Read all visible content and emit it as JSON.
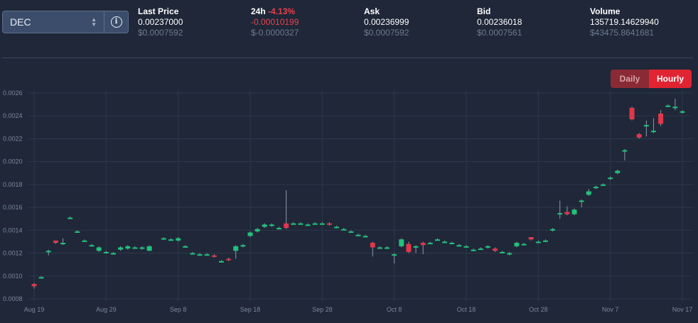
{
  "pair_selector": {
    "value": "DEC"
  },
  "stats": {
    "last_price": {
      "label": "Last Price",
      "value": "0.00237000",
      "usd": "$0.0007592"
    },
    "change_24h": {
      "label": "24h",
      "percent": "-4.13%",
      "value": "-0.00010199",
      "usd": "$-0.0000327"
    },
    "ask": {
      "label": "Ask",
      "value": "0.00236999",
      "usd": "$0.0007592"
    },
    "bid": {
      "label": "Bid",
      "value": "0.00236018",
      "usd": "$0.0007561"
    },
    "volume": {
      "label": "Volume",
      "value": "135719.14629940",
      "usd": "$43475.8641681"
    }
  },
  "toggle": {
    "daily": "Daily",
    "hourly": "Hourly",
    "active": "hourly"
  },
  "colors": {
    "up": "#1fc37a",
    "down": "#e0374a",
    "grid": "#2e394c",
    "wick": "#8e99ab"
  },
  "chart_data": {
    "type": "candlestick",
    "x_ticks": [
      "Aug 19",
      "Aug 29",
      "Sep 8",
      "Sep 18",
      "Sep 28",
      "Oct 8",
      "Oct 18",
      "Oct 28",
      "Nov 7",
      "Nov 17"
    ],
    "y_ticks": [
      "0.0008",
      "0.0010",
      "0.0012",
      "0.0014",
      "0.0016",
      "0.0018",
      "0.0020",
      "0.0022",
      "0.0024",
      "0.0026"
    ],
    "ylim": [
      0.0008,
      0.0026
    ],
    "x_start": "2021-08-19",
    "grid": true,
    "candles": [
      {
        "date": "2021-08-19",
        "o": 0.00093,
        "c": 0.00091,
        "h": 0.00094,
        "l": 0.00089
      },
      {
        "date": "2021-08-20",
        "o": 0.00099,
        "c": 0.00099,
        "h": 0.001,
        "l": 0.00098
      },
      {
        "date": "2021-08-21",
        "o": 0.00121,
        "c": 0.00122,
        "h": 0.00123,
        "l": 0.00118
      },
      {
        "date": "2021-08-22",
        "o": 0.00131,
        "c": 0.00129,
        "h": 0.00131,
        "l": 0.00128
      },
      {
        "date": "2021-08-23",
        "o": 0.00128,
        "c": 0.00129,
        "h": 0.00133,
        "l": 0.00127
      },
      {
        "date": "2021-08-24",
        "o": 0.00151,
        "c": 0.00151,
        "h": 0.00152,
        "l": 0.0015
      },
      {
        "date": "2021-08-25",
        "o": 0.00139,
        "c": 0.00139,
        "h": 0.0014,
        "l": 0.00138
      },
      {
        "date": "2021-08-26",
        "o": 0.00131,
        "c": 0.00131,
        "h": 0.00132,
        "l": 0.0013
      },
      {
        "date": "2021-08-27",
        "o": 0.00127,
        "c": 0.00127,
        "h": 0.00128,
        "l": 0.00126
      },
      {
        "date": "2021-08-28",
        "o": 0.00122,
        "c": 0.00125,
        "h": 0.00126,
        "l": 0.00121
      },
      {
        "date": "2021-08-29",
        "o": 0.00121,
        "c": 0.00121,
        "h": 0.00122,
        "l": 0.0012
      },
      {
        "date": "2021-08-30",
        "o": 0.0012,
        "c": 0.0012,
        "h": 0.00121,
        "l": 0.00119
      },
      {
        "date": "2021-08-31",
        "o": 0.00123,
        "c": 0.00125,
        "h": 0.00126,
        "l": 0.00122
      },
      {
        "date": "2021-09-01",
        "o": 0.00124,
        "c": 0.00126,
        "h": 0.00127,
        "l": 0.00123
      },
      {
        "date": "2021-09-02",
        "o": 0.00125,
        "c": 0.00125,
        "h": 0.00126,
        "l": 0.00124
      },
      {
        "date": "2021-09-03",
        "o": 0.00124,
        "c": 0.00125,
        "h": 0.00126,
        "l": 0.00123
      },
      {
        "date": "2021-09-04",
        "o": 0.00122,
        "c": 0.00126,
        "h": 0.00127,
        "l": 0.00122
      },
      {
        "date": "2021-09-06",
        "o": 0.00133,
        "c": 0.00133,
        "h": 0.00134,
        "l": 0.00132
      },
      {
        "date": "2021-09-07",
        "o": 0.00132,
        "c": 0.00132,
        "h": 0.00133,
        "l": 0.00131
      },
      {
        "date": "2021-09-08",
        "o": 0.00131,
        "c": 0.00133,
        "h": 0.00134,
        "l": 0.0013
      },
      {
        "date": "2021-09-09",
        "o": 0.00126,
        "c": 0.00126,
        "h": 0.00127,
        "l": 0.00125
      },
      {
        "date": "2021-09-10",
        "o": 0.0012,
        "c": 0.0012,
        "h": 0.00121,
        "l": 0.00119
      },
      {
        "date": "2021-09-11",
        "o": 0.00119,
        "c": 0.00119,
        "h": 0.0012,
        "l": 0.00118
      },
      {
        "date": "2021-09-12",
        "o": 0.00119,
        "c": 0.00119,
        "h": 0.0012,
        "l": 0.00118
      },
      {
        "date": "2021-09-13",
        "o": 0.00118,
        "c": 0.00117,
        "h": 0.00119,
        "l": 0.00116
      },
      {
        "date": "2021-09-14",
        "o": 0.00113,
        "c": 0.00113,
        "h": 0.00114,
        "l": 0.00112
      },
      {
        "date": "2021-09-15",
        "o": 0.00115,
        "c": 0.00114,
        "h": 0.00116,
        "l": 0.00113
      },
      {
        "date": "2021-09-16",
        "o": 0.00122,
        "c": 0.00126,
        "h": 0.00127,
        "l": 0.00115
      },
      {
        "date": "2021-09-17",
        "o": 0.00126,
        "c": 0.00127,
        "h": 0.00128,
        "l": 0.00125
      },
      {
        "date": "2021-09-18",
        "o": 0.00135,
        "c": 0.00138,
        "h": 0.00139,
        "l": 0.00134
      },
      {
        "date": "2021-09-19",
        "o": 0.00139,
        "c": 0.00141,
        "h": 0.00142,
        "l": 0.00138
      },
      {
        "date": "2021-09-20",
        "o": 0.00143,
        "c": 0.00145,
        "h": 0.00146,
        "l": 0.00142
      },
      {
        "date": "2021-09-21",
        "o": 0.00144,
        "c": 0.00145,
        "h": 0.00146,
        "l": 0.00143
      },
      {
        "date": "2021-09-22",
        "o": 0.00142,
        "c": 0.00142,
        "h": 0.00143,
        "l": 0.00141
      },
      {
        "date": "2021-09-23",
        "o": 0.00146,
        "c": 0.00142,
        "h": 0.00175,
        "l": 0.00141
      },
      {
        "date": "2021-09-24",
        "o": 0.00146,
        "c": 0.00146,
        "h": 0.00147,
        "l": 0.00145
      },
      {
        "date": "2021-09-25",
        "o": 0.00146,
        "c": 0.00146,
        "h": 0.00147,
        "l": 0.00145
      },
      {
        "date": "2021-09-26",
        "o": 0.00145,
        "c": 0.00145,
        "h": 0.00146,
        "l": 0.00144
      },
      {
        "date": "2021-09-27",
        "o": 0.00146,
        "c": 0.00146,
        "h": 0.00147,
        "l": 0.00145
      },
      {
        "date": "2021-09-28",
        "o": 0.00146,
        "c": 0.00146,
        "h": 0.00147,
        "l": 0.00145
      },
      {
        "date": "2021-09-29",
        "o": 0.00146,
        "c": 0.00145,
        "h": 0.00147,
        "l": 0.00144
      },
      {
        "date": "2021-09-30",
        "o": 0.00143,
        "c": 0.00143,
        "h": 0.00144,
        "l": 0.00142
      },
      {
        "date": "2021-10-01",
        "o": 0.00141,
        "c": 0.00141,
        "h": 0.00142,
        "l": 0.0014
      },
      {
        "date": "2021-10-02",
        "o": 0.00139,
        "c": 0.00139,
        "h": 0.0014,
        "l": 0.00138
      },
      {
        "date": "2021-10-03",
        "o": 0.00136,
        "c": 0.00136,
        "h": 0.00137,
        "l": 0.00135
      },
      {
        "date": "2021-10-04",
        "o": 0.00135,
        "c": 0.00135,
        "h": 0.00136,
        "l": 0.00134
      },
      {
        "date": "2021-10-05",
        "o": 0.00129,
        "c": 0.00125,
        "h": 0.0013,
        "l": 0.00117
      },
      {
        "date": "2021-10-06",
        "o": 0.00125,
        "c": 0.00125,
        "h": 0.00126,
        "l": 0.00124
      },
      {
        "date": "2021-10-07",
        "o": 0.00125,
        "c": 0.00125,
        "h": 0.00126,
        "l": 0.00124
      },
      {
        "date": "2021-10-08",
        "o": 0.00119,
        "c": 0.00119,
        "h": 0.0012,
        "l": 0.00111
      },
      {
        "date": "2021-10-09",
        "o": 0.00126,
        "c": 0.00132,
        "h": 0.00133,
        "l": 0.00125
      },
      {
        "date": "2021-10-10",
        "o": 0.00128,
        "c": 0.00121,
        "h": 0.0013,
        "l": 0.0012
      },
      {
        "date": "2021-10-11",
        "o": 0.00126,
        "c": 0.00126,
        "h": 0.00127,
        "l": 0.0012
      },
      {
        "date": "2021-10-12",
        "o": 0.00129,
        "c": 0.00127,
        "h": 0.0013,
        "l": 0.00119
      },
      {
        "date": "2021-10-13",
        "o": 0.00129,
        "c": 0.00129,
        "h": 0.0013,
        "l": 0.00128
      },
      {
        "date": "2021-10-14",
        "o": 0.00132,
        "c": 0.00132,
        "h": 0.00133,
        "l": 0.00131
      },
      {
        "date": "2021-10-15",
        "o": 0.0013,
        "c": 0.0013,
        "h": 0.00131,
        "l": 0.00129
      },
      {
        "date": "2021-10-16",
        "o": 0.00129,
        "c": 0.00129,
        "h": 0.0013,
        "l": 0.00128
      },
      {
        "date": "2021-10-17",
        "o": 0.00127,
        "c": 0.00127,
        "h": 0.00128,
        "l": 0.00126
      },
      {
        "date": "2021-10-18",
        "o": 0.00126,
        "c": 0.00126,
        "h": 0.00127,
        "l": 0.00125
      },
      {
        "date": "2021-10-19",
        "o": 0.00123,
        "c": 0.00123,
        "h": 0.00124,
        "l": 0.00122
      },
      {
        "date": "2021-10-20",
        "o": 0.00124,
        "c": 0.00124,
        "h": 0.00125,
        "l": 0.00123
      },
      {
        "date": "2021-10-21",
        "o": 0.00125,
        "c": 0.00126,
        "h": 0.00127,
        "l": 0.00124
      },
      {
        "date": "2021-10-22",
        "o": 0.00124,
        "c": 0.00122,
        "h": 0.00125,
        "l": 0.00121
      },
      {
        "date": "2021-10-23",
        "o": 0.00121,
        "c": 0.00121,
        "h": 0.00122,
        "l": 0.0012
      },
      {
        "date": "2021-10-24",
        "o": 0.00119,
        "c": 0.0012,
        "h": 0.00121,
        "l": 0.00118
      },
      {
        "date": "2021-10-25",
        "o": 0.00126,
        "c": 0.00129,
        "h": 0.0013,
        "l": 0.00125
      },
      {
        "date": "2021-10-26",
        "o": 0.00128,
        "c": 0.00128,
        "h": 0.00129,
        "l": 0.00127
      },
      {
        "date": "2021-10-27",
        "o": 0.00134,
        "c": 0.00132,
        "h": 0.00134,
        "l": 0.00131
      },
      {
        "date": "2021-10-28",
        "o": 0.0013,
        "c": 0.0013,
        "h": 0.00131,
        "l": 0.00129
      },
      {
        "date": "2021-10-29",
        "o": 0.00131,
        "c": 0.00131,
        "h": 0.00132,
        "l": 0.0013
      },
      {
        "date": "2021-10-30",
        "o": 0.0014,
        "c": 0.00141,
        "h": 0.00142,
        "l": 0.00139
      },
      {
        "date": "2021-10-31",
        "o": 0.00154,
        "c": 0.00155,
        "h": 0.00166,
        "l": 0.0015
      },
      {
        "date": "2021-11-01",
        "o": 0.00156,
        "c": 0.00154,
        "h": 0.00161,
        "l": 0.00153
      },
      {
        "date": "2021-11-02",
        "o": 0.00154,
        "c": 0.00158,
        "h": 0.00159,
        "l": 0.00153
      },
      {
        "date": "2021-11-03",
        "o": 0.00165,
        "c": 0.00166,
        "h": 0.00167,
        "l": 0.0016
      },
      {
        "date": "2021-11-04",
        "o": 0.00171,
        "c": 0.00174,
        "h": 0.00176,
        "l": 0.0017
      },
      {
        "date": "2021-11-05",
        "o": 0.00177,
        "c": 0.00178,
        "h": 0.00179,
        "l": 0.00176
      },
      {
        "date": "2021-11-06",
        "o": 0.0018,
        "c": 0.0018,
        "h": 0.00181,
        "l": 0.00179
      },
      {
        "date": "2021-11-07",
        "o": 0.00185,
        "c": 0.00186,
        "h": 0.00187,
        "l": 0.00184
      },
      {
        "date": "2021-11-08",
        "o": 0.0019,
        "c": 0.00192,
        "h": 0.00193,
        "l": 0.00189
      },
      {
        "date": "2021-11-09",
        "o": 0.0021,
        "c": 0.0021,
        "h": 0.00211,
        "l": 0.00201
      },
      {
        "date": "2021-11-10",
        "o": 0.00247,
        "c": 0.00237,
        "h": 0.00248,
        "l": 0.00236
      },
      {
        "date": "2021-11-11",
        "o": 0.00224,
        "c": 0.00221,
        "h": 0.00225,
        "l": 0.0022
      },
      {
        "date": "2021-11-12",
        "o": 0.00232,
        "c": 0.00232,
        "h": 0.00236,
        "l": 0.00222
      },
      {
        "date": "2021-11-13",
        "o": 0.00227,
        "c": 0.00227,
        "h": 0.00238,
        "l": 0.00225
      },
      {
        "date": "2021-11-14",
        "o": 0.00242,
        "c": 0.00233,
        "h": 0.00245,
        "l": 0.00231
      },
      {
        "date": "2021-11-15",
        "o": 0.00249,
        "c": 0.00249,
        "h": 0.0025,
        "l": 0.00248
      },
      {
        "date": "2021-11-16",
        "o": 0.00248,
        "c": 0.00248,
        "h": 0.00255,
        "l": 0.00245
      },
      {
        "date": "2021-11-17",
        "o": 0.00243,
        "c": 0.00244,
        "h": 0.00245,
        "l": 0.00242
      }
    ]
  }
}
